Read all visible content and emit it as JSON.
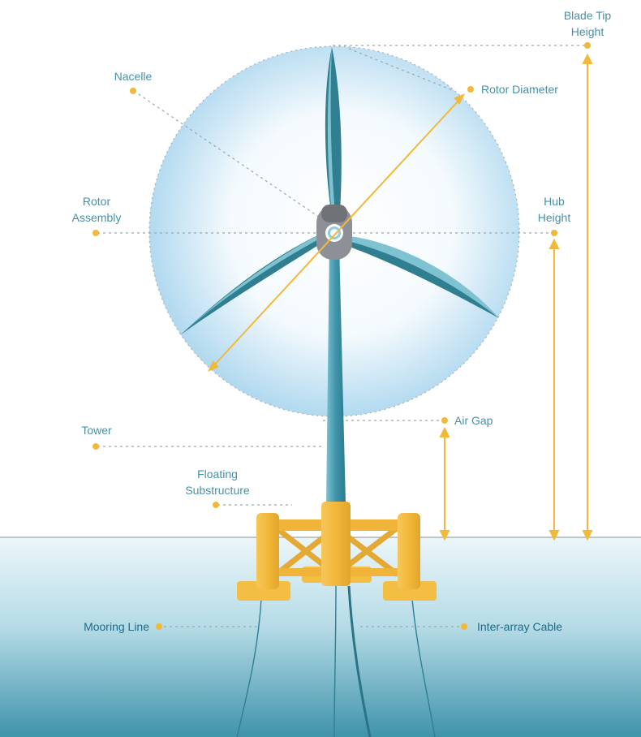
{
  "labels": {
    "blade_tip_height": "Blade Tip\nHeight",
    "nacelle": "Nacelle",
    "rotor_diameter": "Rotor Diameter",
    "rotor_assembly": "Rotor\nAssembly",
    "hub_height": "Hub\nHeight",
    "air_gap": "Air Gap",
    "tower": "Tower",
    "floating_substructure": "Floating\nSubstructure",
    "mooring_line": "Mooring Line",
    "inter_array_cable": "Inter-array Cable"
  },
  "colors": {
    "accent": "#f2b83a",
    "label_text": "#4a8fa8",
    "blade_dark": "#2f7f91",
    "blade_light": "#6fb8ca",
    "tower": "#3b8ea3",
    "hub": "#8d9096",
    "substructure": "#f2b83a",
    "water_top": "#e8f3f7",
    "water_bottom": "#4d9db4",
    "rotor_disc": "#bfe0f2"
  }
}
